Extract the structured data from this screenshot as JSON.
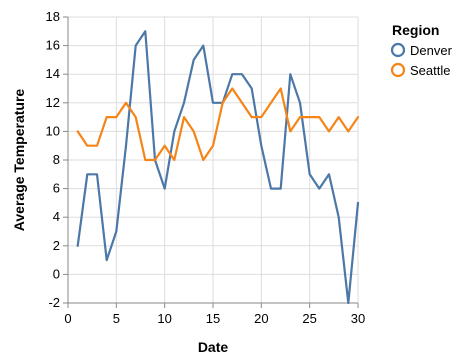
{
  "chart_data": {
    "type": "line",
    "xlabel": "Date",
    "ylabel": "Average Temperature",
    "xlim": [
      0,
      30
    ],
    "ylim": [
      -2,
      18
    ],
    "xticks": [
      0,
      5,
      10,
      15,
      20,
      25,
      30
    ],
    "yticks": [
      -2,
      0,
      2,
      4,
      6,
      8,
      10,
      12,
      14,
      16,
      18
    ],
    "grid": true,
    "legend": {
      "title": "Region",
      "placement": "top-right"
    },
    "x": [
      1,
      2,
      3,
      4,
      5,
      6,
      7,
      8,
      9,
      10,
      11,
      12,
      13,
      14,
      15,
      16,
      17,
      18,
      19,
      20,
      21,
      22,
      23,
      24,
      25,
      26,
      27,
      28,
      29,
      30
    ],
    "series": [
      {
        "name": "Denver",
        "color": "#4c78a8",
        "values": [
          2,
          7,
          7,
          1,
          3,
          9,
          16,
          17,
          8,
          6,
          10,
          12,
          15,
          16,
          12,
          12,
          14,
          14,
          13,
          9,
          6,
          6,
          14,
          12,
          7,
          6,
          7,
          4,
          -2,
          5
        ]
      },
      {
        "name": "Seattle",
        "color": "#f58518",
        "values": [
          10,
          9,
          9,
          11,
          11,
          12,
          11,
          8,
          8,
          9,
          8,
          11,
          10,
          8,
          9,
          12,
          13,
          12,
          11,
          11,
          12,
          13,
          10,
          11,
          11,
          11,
          10,
          11,
          10,
          11
        ]
      }
    ]
  }
}
